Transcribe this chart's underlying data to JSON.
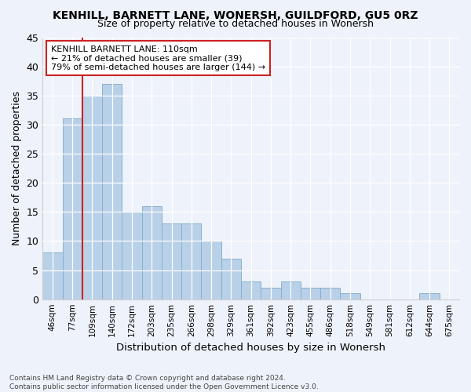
{
  "title": "KENHILL, BARNETT LANE, WONERSH, GUILDFORD, GU5 0RZ",
  "subtitle": "Size of property relative to detached houses in Wonersh",
  "xlabel": "Distribution of detached houses by size in Wonersh",
  "ylabel": "Number of detached properties",
  "categories": [
    "46sqm",
    "77sqm",
    "109sqm",
    "140sqm",
    "172sqm",
    "203sqm",
    "235sqm",
    "266sqm",
    "298sqm",
    "329sqm",
    "361sqm",
    "392sqm",
    "423sqm",
    "455sqm",
    "486sqm",
    "518sqm",
    "549sqm",
    "581sqm",
    "612sqm",
    "644sqm",
    "675sqm"
  ],
  "values": [
    8,
    31,
    35,
    37,
    15,
    16,
    13,
    13,
    10,
    7,
    3,
    2,
    3,
    2,
    2,
    1,
    0,
    0,
    0,
    1,
    0
  ],
  "bar_color": "#b8d0e8",
  "bar_edge_color": "#8ab0cc",
  "background_color": "#eef2fa",
  "ylim": [
    0,
    45
  ],
  "yticks": [
    0,
    5,
    10,
    15,
    20,
    25,
    30,
    35,
    40,
    45
  ],
  "vline_x_index": 2,
  "vline_color": "#cc2222",
  "annotation_text": "KENHILL BARNETT LANE: 110sqm\n← 21% of detached houses are smaller (39)\n79% of semi-detached houses are larger (144) →",
  "annotation_box_color": "white",
  "annotation_box_edge_color": "#cc2222",
  "footer_line1": "Contains HM Land Registry data © Crown copyright and database right 2024.",
  "footer_line2": "Contains public sector information licensed under the Open Government Licence v3.0."
}
